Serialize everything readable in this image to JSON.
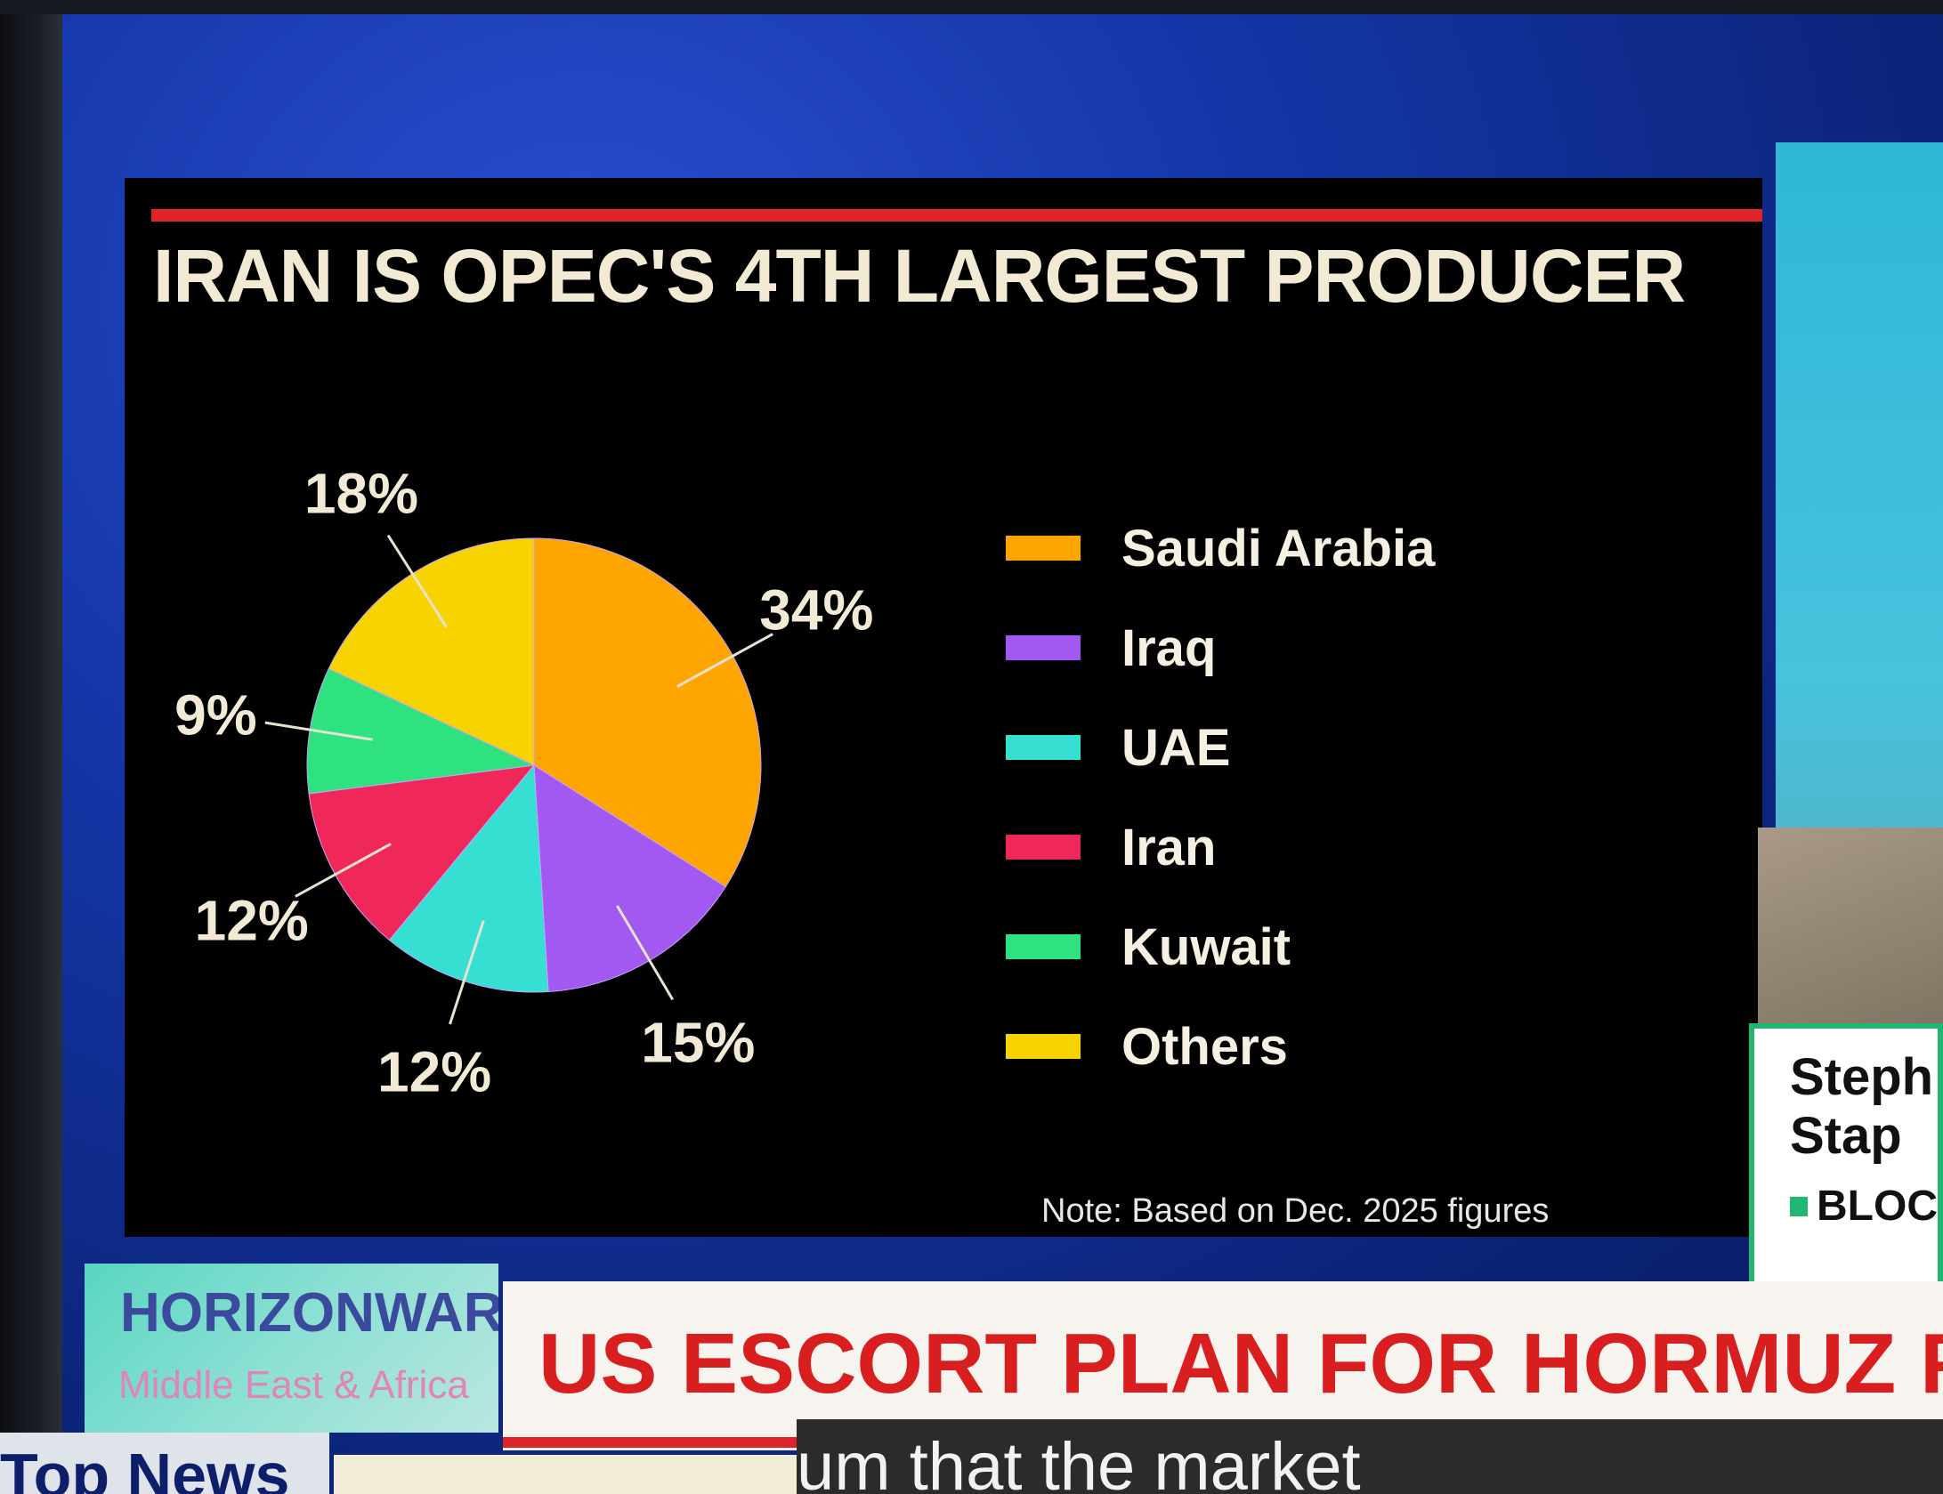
{
  "chart_data": {
    "type": "pie",
    "title": "IRAN IS OPEC'S 4TH LARGEST PRODUCER",
    "categories": [
      "Saudi Arabia",
      "Iraq",
      "UAE",
      "Iran",
      "Kuwait",
      "Others"
    ],
    "values": [
      34,
      15,
      12,
      12,
      9,
      18
    ],
    "labels": [
      "34%",
      "15%",
      "12%",
      "12%",
      "9%",
      "18%"
    ],
    "colors": [
      "#ffa500",
      "#a259f2",
      "#35e0d2",
      "#f0285a",
      "#2ee27f",
      "#f7d300"
    ],
    "legend_position": "right",
    "note": "Note: Based on Dec. 2025 figures"
  },
  "side_card": {
    "name_line1": "Steph",
    "name_line2": "Stap",
    "brand": "BLOC"
  },
  "show_logo": {
    "main": "HORIZONWAR",
    "sub": "Middle East & Africa"
  },
  "headline": "US ESCORT PLAN FOR HORMUZ FAILS T",
  "bottom_left": "Top News",
  "caption": "um that the market"
}
